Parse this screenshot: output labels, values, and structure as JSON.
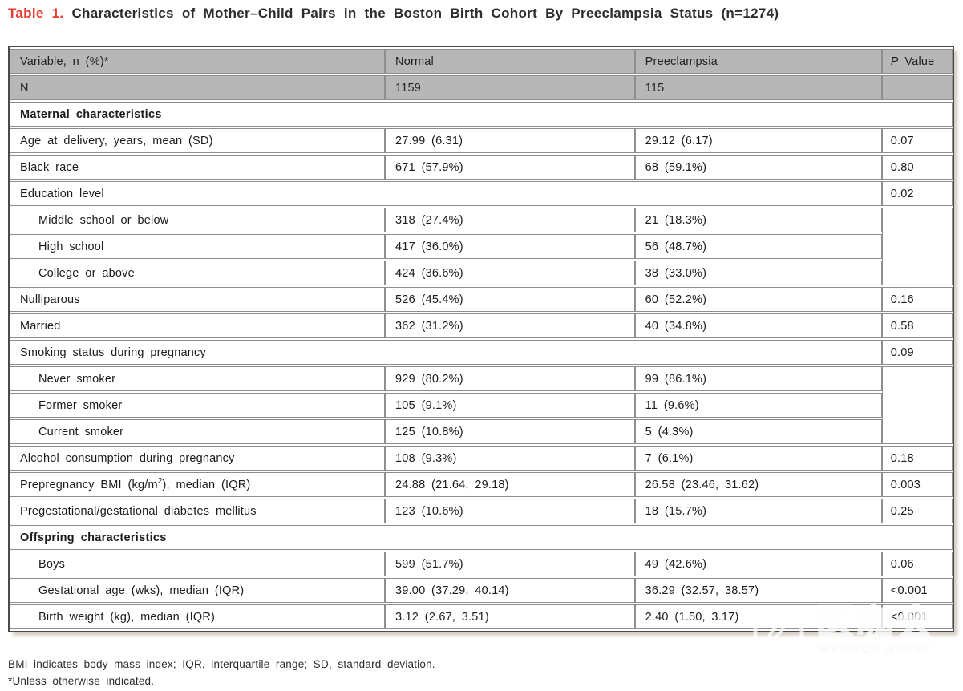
{
  "title": {
    "label": "Table 1.",
    "text": "Characteristics of Mother–Child Pairs in the Boston Birth Cohort By Preeclampsia Status (n=1274)"
  },
  "table": {
    "header": {
      "variable": "Variable, n (%)*",
      "normal": "Normal",
      "preeclampsia": "Preeclampsia",
      "p_italic": "P",
      "p_rest": " Value"
    },
    "n_row": {
      "label": "N",
      "normal": "1159",
      "preeclampsia": "115",
      "p": ""
    },
    "rows": [
      {
        "type": "section",
        "label": "Maternal characteristics"
      },
      {
        "label": "Age at delivery, years, mean (SD)",
        "normal": "27.99 (6.31)",
        "preeclampsia": "29.12 (6.17)",
        "p": "0.07"
      },
      {
        "label": "Black race",
        "normal": "671 (57.9%)",
        "preeclampsia": "68 (59.1%)",
        "p": "0.80"
      },
      {
        "type": "group",
        "label": "Education level",
        "p": "0.02"
      },
      {
        "indent": true,
        "label": "Middle school or below",
        "normal": "318 (27.4%)",
        "preeclampsia": "21 (18.3%)",
        "p": "",
        "p_rowspan": 3
      },
      {
        "indent": true,
        "label": "High school",
        "normal": "417 (36.0%)",
        "preeclampsia": "56 (48.7%)",
        "no_p": true
      },
      {
        "indent": true,
        "label": "College or above",
        "normal": "424 (36.6%)",
        "preeclampsia": "38 (33.0%)",
        "no_p": true
      },
      {
        "label": "Nulliparous",
        "normal": "526 (45.4%)",
        "preeclampsia": "60 (52.2%)",
        "p": "0.16"
      },
      {
        "label": "Married",
        "normal": "362 (31.2%)",
        "preeclampsia": "40 (34.8%)",
        "p": "0.58"
      },
      {
        "type": "group",
        "label": "Smoking status during pregnancy",
        "p": "0.09"
      },
      {
        "indent": true,
        "label": "Never smoker",
        "normal": "929 (80.2%)",
        "preeclampsia": "99 (86.1%)",
        "p": "",
        "p_rowspan": 3
      },
      {
        "indent": true,
        "label": "Former smoker",
        "normal": "105 (9.1%)",
        "preeclampsia": "11 (9.6%)",
        "no_p": true
      },
      {
        "indent": true,
        "label": "Current smoker",
        "normal": "125 (10.8%)",
        "preeclampsia": "5 (4.3%)",
        "no_p": true
      },
      {
        "label": "Alcohol consumption during pregnancy",
        "normal": "108 (9.3%)",
        "preeclampsia": "7 (6.1%)",
        "p": "0.18"
      },
      {
        "label": "Prepregnancy BMI (kg/m",
        "label_sup": "2",
        "label_after": "), median (IQR)",
        "normal": "24.88 (21.64, 29.18)",
        "preeclampsia": "26.58 (23.46, 31.62)",
        "p": "0.003"
      },
      {
        "label": "Pregestational/gestational diabetes mellitus",
        "normal": "123 (10.6%)",
        "preeclampsia": "18 (15.7%)",
        "p": "0.25"
      },
      {
        "type": "section",
        "label": "Offspring characteristics"
      },
      {
        "indent": true,
        "label": "Boys",
        "normal": "599 (51.7%)",
        "preeclampsia": "49 (42.6%)",
        "p": "0.06"
      },
      {
        "indent": true,
        "label": "Gestational age (wks), median (IQR)",
        "normal": "39.00 (37.29, 40.14)",
        "preeclampsia": "36.29 (32.57, 38.57)",
        "p": "<0.001"
      },
      {
        "indent": true,
        "label": "Birth weight (kg), median (IQR)",
        "normal": "3.12 (2.67, 3.51)",
        "preeclampsia": "2.40 (1.50, 3.17)",
        "p": "<0.001"
      }
    ]
  },
  "footnotes": [
    "BMI indicates body mass index; IQR, interquartile range; SD, standard deviation.",
    "*Unless otherwise indicated."
  ],
  "watermark": {
    "cjk": "医咖会",
    "latin": "MEDIECO GROUP"
  },
  "colors": {
    "caption_accent": "#e8392f",
    "header_bg": "#b7b7b7",
    "grid_border": "#8e8e8e",
    "outer_border": "#4a4a4a",
    "text": "#1b1b1b"
  }
}
